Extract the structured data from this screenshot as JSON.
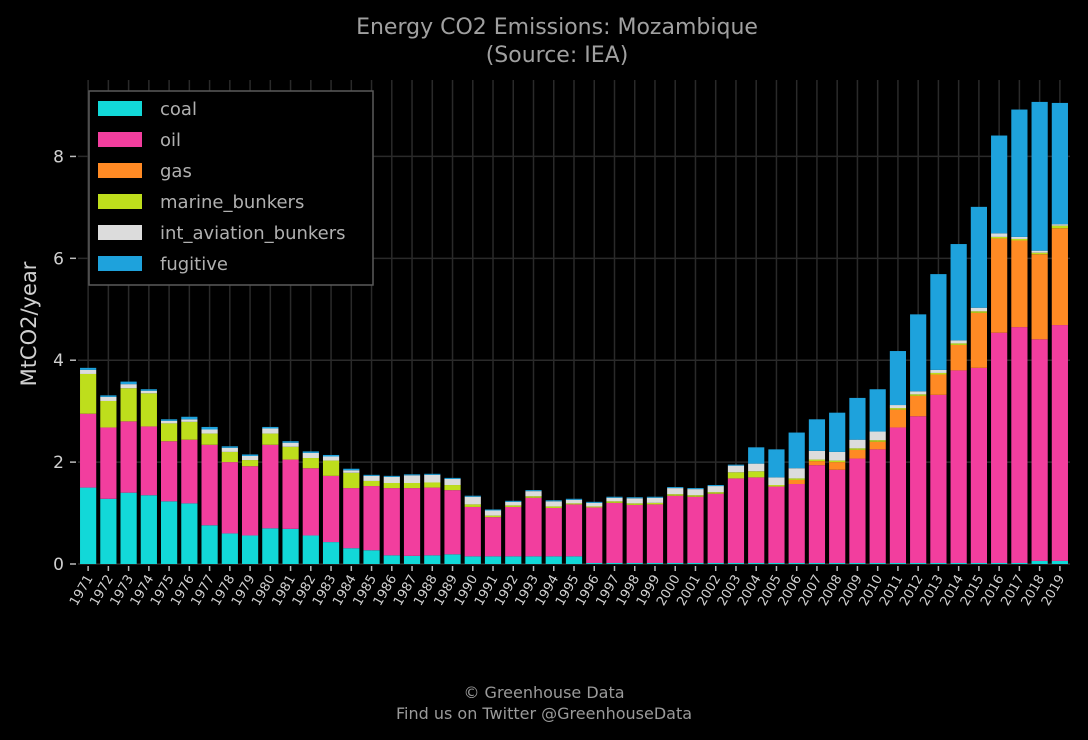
{
  "chart_data": {
    "type": "bar",
    "stacked": true,
    "title": "Energy CO2 Emissions: Mozambique",
    "subtitle": "(Source: IEA)",
    "xlabel": "",
    "ylabel": "MtCO2/year",
    "ylim": [
      0,
      9.5
    ],
    "yticks": [
      0,
      2,
      4,
      6,
      8
    ],
    "grid": true,
    "legend_position": "top-left",
    "categories": [
      "1971",
      "1972",
      "1973",
      "1974",
      "1975",
      "1976",
      "1977",
      "1978",
      "1979",
      "1980",
      "1981",
      "1982",
      "1983",
      "1984",
      "1985",
      "1986",
      "1987",
      "1988",
      "1989",
      "1990",
      "1991",
      "1992",
      "1993",
      "1994",
      "1995",
      "1996",
      "1997",
      "1998",
      "1999",
      "2000",
      "2001",
      "2002",
      "2003",
      "2004",
      "2005",
      "2006",
      "2007",
      "2008",
      "2009",
      "2010",
      "2011",
      "2012",
      "2013",
      "2014",
      "2015",
      "2016",
      "2017",
      "2018",
      "2019"
    ],
    "series": [
      {
        "name": "coal",
        "color": "#12d8d8",
        "values": [
          1.5,
          1.28,
          1.4,
          1.35,
          1.23,
          1.19,
          0.76,
          0.6,
          0.56,
          0.7,
          0.69,
          0.56,
          0.43,
          0.31,
          0.27,
          0.17,
          0.16,
          0.17,
          0.19,
          0.15,
          0.15,
          0.15,
          0.15,
          0.15,
          0.15,
          0.02,
          0.02,
          0.02,
          0.02,
          0.02,
          0.02,
          0.02,
          0.02,
          0.02,
          0.02,
          0.02,
          0.02,
          0.02,
          0.02,
          0.02,
          0.02,
          0.02,
          0.02,
          0.02,
          0.02,
          0.02,
          0.02,
          0.06,
          0.06
        ]
      },
      {
        "name": "oil",
        "color": "#f23e9e",
        "values": [
          1.45,
          1.4,
          1.4,
          1.35,
          1.18,
          1.25,
          1.58,
          1.4,
          1.36,
          1.64,
          1.36,
          1.32,
          1.3,
          1.18,
          1.26,
          1.32,
          1.33,
          1.33,
          1.26,
          0.97,
          0.77,
          0.97,
          1.15,
          0.95,
          1.02,
          1.09,
          1.18,
          1.14,
          1.15,
          1.32,
          1.3,
          1.36,
          1.66,
          1.68,
          1.5,
          1.55,
          1.92,
          1.83,
          2.05,
          2.23,
          2.66,
          2.88,
          3.3,
          3.78,
          3.83,
          4.52,
          4.63,
          4.35,
          4.63
        ]
      },
      {
        "name": "gas",
        "color": "#ff8a24",
        "values": [
          0,
          0,
          0,
          0,
          0,
          0,
          0,
          0,
          0,
          0,
          0,
          0,
          0,
          0,
          0,
          0,
          0,
          0,
          0,
          0,
          0,
          0,
          0,
          0,
          0,
          0,
          0,
          0,
          0,
          0,
          0,
          0,
          0,
          0,
          0,
          0.08,
          0.08,
          0.15,
          0.17,
          0.15,
          0.35,
          0.4,
          0.4,
          0.5,
          1.08,
          1.85,
          1.7,
          1.67,
          1.9
        ]
      },
      {
        "name": "marine_bunkers",
        "color": "#bede1c",
        "values": [
          0.78,
          0.52,
          0.65,
          0.65,
          0.35,
          0.35,
          0.22,
          0.2,
          0.12,
          0.22,
          0.25,
          0.2,
          0.3,
          0.3,
          0.1,
          0.1,
          0.1,
          0.1,
          0.1,
          0.05,
          0.03,
          0.03,
          0.03,
          0.03,
          0.02,
          0.02,
          0.03,
          0.03,
          0.03,
          0.03,
          0.03,
          0.03,
          0.12,
          0.12,
          0.03,
          0.03,
          0.03,
          0.03,
          0.03,
          0.03,
          0.03,
          0.03,
          0.03,
          0.03,
          0.03,
          0.03,
          0.03,
          0.03,
          0.05
        ]
      },
      {
        "name": "int_aviation_bunkers",
        "color": "#dcdcdc",
        "values": [
          0.08,
          0.08,
          0.08,
          0.05,
          0.05,
          0.05,
          0.08,
          0.08,
          0.08,
          0.1,
          0.08,
          0.1,
          0.08,
          0.05,
          0.1,
          0.12,
          0.15,
          0.15,
          0.12,
          0.15,
          0.1,
          0.07,
          0.1,
          0.1,
          0.07,
          0.07,
          0.07,
          0.1,
          0.1,
          0.12,
          0.12,
          0.12,
          0.13,
          0.15,
          0.15,
          0.2,
          0.17,
          0.17,
          0.17,
          0.17,
          0.06,
          0.06,
          0.06,
          0.06,
          0.07,
          0.07,
          0.04,
          0.04,
          0.03
        ]
      },
      {
        "name": "fugitive",
        "color": "#1ea2dc",
        "values": [
          0.04,
          0.03,
          0.05,
          0.03,
          0.03,
          0.05,
          0.05,
          0.03,
          0.03,
          0.03,
          0.03,
          0.03,
          0.03,
          0.03,
          0.02,
          0.02,
          0.02,
          0.02,
          0.02,
          0.02,
          0.02,
          0.02,
          0.02,
          0.02,
          0.02,
          0.02,
          0.02,
          0.02,
          0.02,
          0.02,
          0.02,
          0.02,
          0.02,
          0.32,
          0.55,
          0.7,
          0.62,
          0.77,
          0.82,
          0.83,
          1.06,
          1.51,
          1.88,
          1.89,
          1.98,
          1.92,
          2.5,
          2.92,
          2.38
        ]
      }
    ]
  },
  "footer": {
    "line1": "© Greenhouse Data",
    "line2": "Find us on Twitter @GreenhouseData"
  }
}
